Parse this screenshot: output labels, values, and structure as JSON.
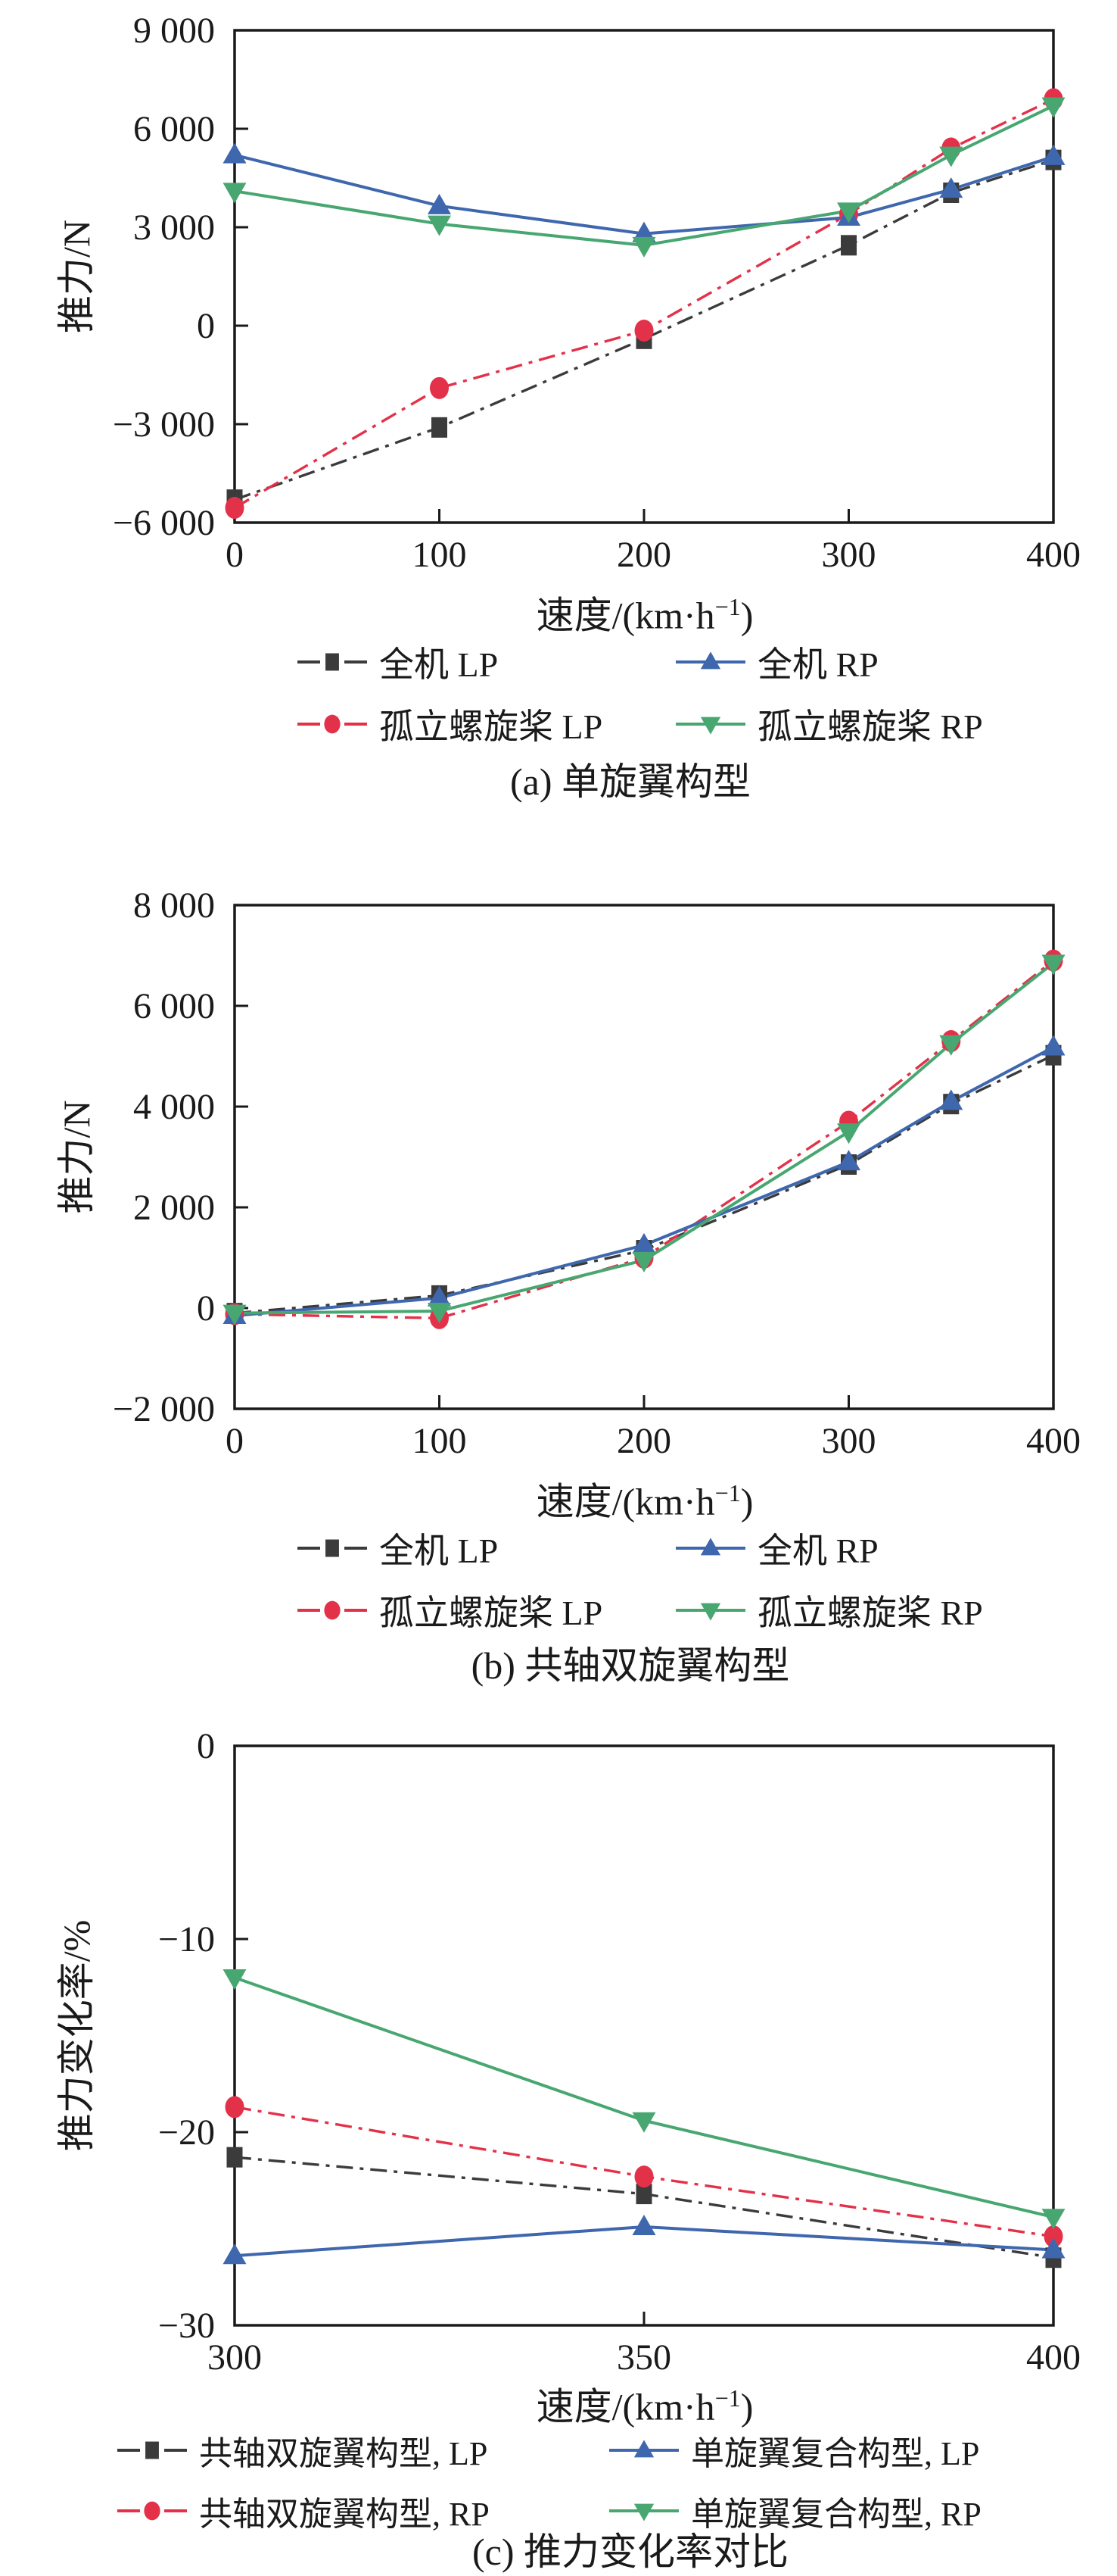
{
  "figure": {
    "background": "#ffffff",
    "axis_color": "#1a1a1a"
  },
  "xlabel": {
    "pre": "速度/(km·h",
    "sup": "−1",
    "post": ")"
  },
  "chart_data": [
    {
      "id": "a",
      "type": "line",
      "title": "(a) 单旋翼构型",
      "ylabel": "推力/N",
      "xlabel": "速度/(km·h−1)",
      "ylim": [
        -6000,
        9000
      ],
      "yticks": [
        9000,
        6000,
        3000,
        0,
        -3000,
        -6000
      ],
      "ytick_labels": [
        "9 000",
        "6 000",
        "3 000",
        "0",
        "−3 000",
        "−6 000"
      ],
      "xlim": [
        0,
        400
      ],
      "xticks": [
        0,
        100,
        200,
        300,
        400
      ],
      "xtick_labels": [
        "0",
        "100",
        "200",
        "300",
        "400"
      ],
      "grid": false,
      "legend_position": "below",
      "x": [
        0,
        100,
        200,
        300,
        350,
        400
      ],
      "series": [
        {
          "name": "全机 LP",
          "color": "#3b3b3b",
          "marker": "square",
          "line": "dashdot",
          "values": [
            -5300,
            -3100,
            -400,
            2450,
            4050,
            5050
          ]
        },
        {
          "name": "孤立螺旋桨 LP",
          "color": "#e4314a",
          "marker": "circle",
          "line": "dashdot",
          "values": [
            -5550,
            -1900,
            -150,
            3400,
            5400,
            6900
          ]
        },
        {
          "name": "全机 RP",
          "color": "#3f67ae",
          "marker": "triangle-up",
          "line": "solid",
          "values": [
            5200,
            3650,
            2800,
            3300,
            4150,
            5150
          ]
        },
        {
          "name": "孤立螺旋桨 RP",
          "color": "#48a771",
          "marker": "triangle-down",
          "line": "solid",
          "values": [
            4100,
            3100,
            2450,
            3500,
            5200,
            6700
          ]
        }
      ],
      "legend_order": [
        0,
        2,
        1,
        3
      ]
    },
    {
      "id": "b",
      "type": "line",
      "title": "(b) 共轴双旋翼构型",
      "ylabel": "推力/N",
      "xlabel": "速度/(km·h−1)",
      "ylim": [
        -2000,
        8000
      ],
      "yticks": [
        8000,
        6000,
        4000,
        2000,
        0,
        -2000
      ],
      "ytick_labels": [
        "8 000",
        "6 000",
        "4 000",
        "2 000",
        "0",
        "−2 000"
      ],
      "xlim": [
        0,
        400
      ],
      "xticks": [
        0,
        100,
        200,
        300,
        400
      ],
      "xtick_labels": [
        "0",
        "100",
        "200",
        "300",
        "400"
      ],
      "grid": false,
      "legend_position": "below",
      "x": [
        0,
        100,
        200,
        300,
        350,
        400
      ],
      "series": [
        {
          "name": "全机 LP",
          "color": "#3b3b3b",
          "marker": "square",
          "line": "dashdot",
          "values": [
            -100,
            250,
            1150,
            2850,
            4050,
            5020
          ]
        },
        {
          "name": "孤立螺旋桨 LP",
          "color": "#e4314a",
          "marker": "circle",
          "line": "dashdot",
          "values": [
            -120,
            -200,
            1000,
            3700,
            5300,
            6900
          ]
        },
        {
          "name": "全机 RP",
          "color": "#3f67ae",
          "marker": "triangle-up",
          "line": "solid",
          "values": [
            -150,
            200,
            1250,
            2900,
            4100,
            5180
          ]
        },
        {
          "name": "孤立螺旋桨 RP",
          "color": "#48a771",
          "marker": "triangle-down",
          "line": "solid",
          "values": [
            -100,
            -60,
            950,
            3500,
            5250,
            6850
          ]
        }
      ],
      "legend_order": [
        0,
        2,
        1,
        3
      ]
    },
    {
      "id": "c",
      "type": "line",
      "title": "(c) 推力变化率对比",
      "ylabel": "推力变化率/%",
      "xlabel": "速度/(km·h−1)",
      "ylim": [
        -30,
        0
      ],
      "yticks": [
        0,
        -10,
        -20,
        -30
      ],
      "ytick_labels": [
        "0",
        "−10",
        "−20",
        "−30"
      ],
      "xlim": [
        300,
        400
      ],
      "xticks": [
        300,
        350,
        400
      ],
      "xtick_labels": [
        "300",
        "350",
        "400"
      ],
      "grid": false,
      "legend_position": "below",
      "x": [
        300,
        350,
        400
      ],
      "series": [
        {
          "name": "共轴双旋翼构型, LP",
          "color": "#3b3b3b",
          "marker": "square",
          "line": "dashdot",
          "values": [
            -21.3,
            -23.2,
            -26.5
          ]
        },
        {
          "name": "共轴双旋翼构型, RP",
          "color": "#e4314a",
          "marker": "circle",
          "line": "dashdot",
          "values": [
            -18.7,
            -22.3,
            -25.4
          ]
        },
        {
          "name": "单旋翼复合构型, LP",
          "color": "#3f67ae",
          "marker": "triangle-up",
          "line": "solid",
          "values": [
            -26.4,
            -24.9,
            -26.1
          ]
        },
        {
          "name": "单旋翼复合构型, RP",
          "color": "#48a771",
          "marker": "triangle-down",
          "line": "solid",
          "values": [
            -12.0,
            -19.4,
            -24.4
          ]
        }
      ],
      "legend_order": [
        0,
        2,
        1,
        3
      ]
    }
  ]
}
